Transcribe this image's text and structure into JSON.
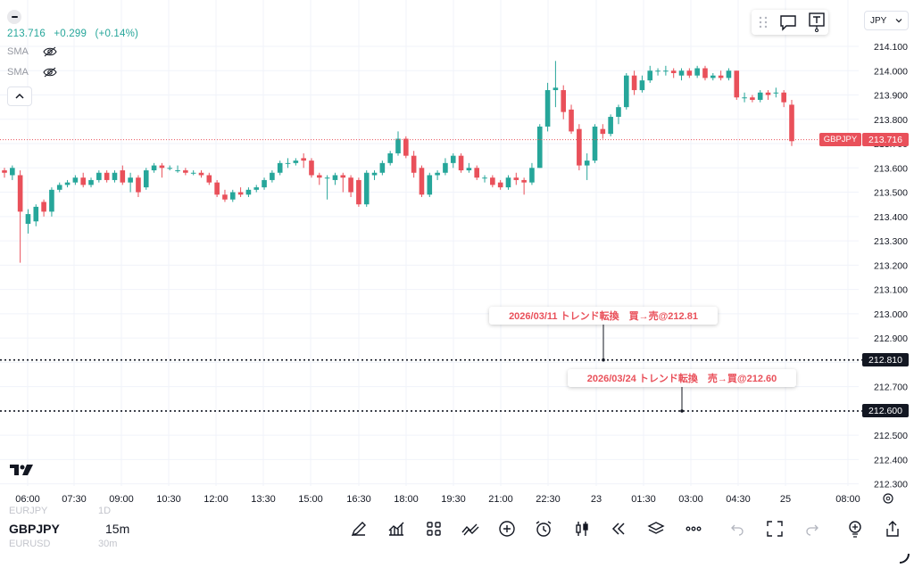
{
  "quote": {
    "price": "213.716",
    "change": "+0.299",
    "change_pct": "(+0.14%)"
  },
  "indicators": [
    {
      "label": "SMA",
      "icon": "eye-off-icon"
    },
    {
      "label": "SMA",
      "icon": "eye-off-icon"
    }
  ],
  "currency_select": {
    "value": "JPY"
  },
  "last_price": {
    "symbol": "GBPJPY",
    "value": "213.716"
  },
  "price_lines": [
    {
      "value": "212.810",
      "note": "2026/03/11 トレンド転換　買→売@212.81"
    },
    {
      "value": "212.600",
      "note": "2026/03/24 トレンド転換　売→買@212.60"
    }
  ],
  "chart_data": {
    "type": "candlestick",
    "symbol": "GBPJPY",
    "interval": "15m",
    "y_tick_labels": [
      "214.100",
      "214.000",
      "213.900",
      "213.800",
      "213.700",
      "213.600",
      "213.500",
      "213.400",
      "213.300",
      "213.200",
      "213.100",
      "213.000",
      "212.900",
      "212.800",
      "212.700",
      "212.600",
      "212.500",
      "212.400",
      "212.300"
    ],
    "x_tick_labels": [
      "06:00",
      "07:30",
      "09:00",
      "10:30",
      "12:00",
      "13:30",
      "15:00",
      "16:30",
      "18:00",
      "19:30",
      "21:00",
      "22:30",
      "23",
      "01:30",
      "03:00",
      "04:30",
      "25",
      "08:00"
    ],
    "ylim": [
      212.28,
      214.16
    ],
    "horizontal_lines": [
      213.716,
      212.81,
      212.6
    ],
    "candles": [
      {
        "o": 213.59,
        "h": 213.6,
        "l": 213.56,
        "c": 213.58
      },
      {
        "o": 213.57,
        "h": 213.61,
        "l": 213.55,
        "c": 213.6
      },
      {
        "o": 213.57,
        "h": 213.59,
        "l": 213.21,
        "c": 213.42
      },
      {
        "o": 213.37,
        "h": 213.43,
        "l": 213.33,
        "c": 213.41
      },
      {
        "o": 213.38,
        "h": 213.45,
        "l": 213.36,
        "c": 213.44
      },
      {
        "o": 213.46,
        "h": 213.47,
        "l": 213.4,
        "c": 213.42
      },
      {
        "o": 213.42,
        "h": 213.52,
        "l": 213.4,
        "c": 213.51
      },
      {
        "o": 213.51,
        "h": 213.54,
        "l": 213.5,
        "c": 213.53
      },
      {
        "o": 213.53,
        "h": 213.55,
        "l": 213.52,
        "c": 213.54
      },
      {
        "o": 213.54,
        "h": 213.57,
        "l": 213.53,
        "c": 213.56
      },
      {
        "o": 213.56,
        "h": 213.58,
        "l": 213.52,
        "c": 213.53
      },
      {
        "o": 213.53,
        "h": 213.56,
        "l": 213.52,
        "c": 213.55
      },
      {
        "o": 213.55,
        "h": 213.59,
        "l": 213.54,
        "c": 213.58
      },
      {
        "o": 213.58,
        "h": 213.59,
        "l": 213.54,
        "c": 213.55
      },
      {
        "o": 213.55,
        "h": 213.59,
        "l": 213.54,
        "c": 213.58
      },
      {
        "o": 213.59,
        "h": 213.61,
        "l": 213.53,
        "c": 213.54
      },
      {
        "o": 213.54,
        "h": 213.58,
        "l": 213.5,
        "c": 213.56
      },
      {
        "o": 213.56,
        "h": 213.57,
        "l": 213.48,
        "c": 213.5
      },
      {
        "o": 213.52,
        "h": 213.6,
        "l": 213.51,
        "c": 213.59
      },
      {
        "o": 213.59,
        "h": 213.62,
        "l": 213.58,
        "c": 213.61
      },
      {
        "o": 213.61,
        "h": 213.62,
        "l": 213.56,
        "c": 213.6
      },
      {
        "o": 213.6,
        "h": 213.61,
        "l": 213.59,
        "c": 213.6
      },
      {
        "o": 213.59,
        "h": 213.61,
        "l": 213.58,
        "c": 213.59
      },
      {
        "o": 213.59,
        "h": 213.6,
        "l": 213.57,
        "c": 213.58
      },
      {
        "o": 213.58,
        "h": 213.59,
        "l": 213.57,
        "c": 213.58
      },
      {
        "o": 213.58,
        "h": 213.59,
        "l": 213.56,
        "c": 213.57
      },
      {
        "o": 213.57,
        "h": 213.58,
        "l": 213.53,
        "c": 213.54
      },
      {
        "o": 213.54,
        "h": 213.55,
        "l": 213.48,
        "c": 213.49
      },
      {
        "o": 213.49,
        "h": 213.51,
        "l": 213.46,
        "c": 213.47
      },
      {
        "o": 213.47,
        "h": 213.51,
        "l": 213.46,
        "c": 213.5
      },
      {
        "o": 213.5,
        "h": 213.52,
        "l": 213.48,
        "c": 213.49
      },
      {
        "o": 213.49,
        "h": 213.52,
        "l": 213.48,
        "c": 213.51
      },
      {
        "o": 213.51,
        "h": 213.53,
        "l": 213.5,
        "c": 213.52
      },
      {
        "o": 213.52,
        "h": 213.56,
        "l": 213.51,
        "c": 213.55
      },
      {
        "o": 213.55,
        "h": 213.59,
        "l": 213.54,
        "c": 213.58
      },
      {
        "o": 213.58,
        "h": 213.63,
        "l": 213.57,
        "c": 213.62
      },
      {
        "o": 213.62,
        "h": 213.64,
        "l": 213.6,
        "c": 213.62
      },
      {
        "o": 213.62,
        "h": 213.64,
        "l": 213.61,
        "c": 213.63
      },
      {
        "o": 213.64,
        "h": 213.66,
        "l": 213.6,
        "c": 213.63
      },
      {
        "o": 213.63,
        "h": 213.64,
        "l": 213.56,
        "c": 213.57
      },
      {
        "o": 213.57,
        "h": 213.58,
        "l": 213.53,
        "c": 213.56
      },
      {
        "o": 213.56,
        "h": 213.57,
        "l": 213.47,
        "c": 213.56
      },
      {
        "o": 213.55,
        "h": 213.58,
        "l": 213.53,
        "c": 213.57
      },
      {
        "o": 213.57,
        "h": 213.58,
        "l": 213.5,
        "c": 213.56
      },
      {
        "o": 213.56,
        "h": 213.57,
        "l": 213.48,
        "c": 213.5
      },
      {
        "o": 213.55,
        "h": 213.56,
        "l": 213.44,
        "c": 213.45
      },
      {
        "o": 213.45,
        "h": 213.59,
        "l": 213.44,
        "c": 213.58
      },
      {
        "o": 213.57,
        "h": 213.59,
        "l": 213.55,
        "c": 213.58
      },
      {
        "o": 213.58,
        "h": 213.63,
        "l": 213.57,
        "c": 213.62
      },
      {
        "o": 213.62,
        "h": 213.67,
        "l": 213.61,
        "c": 213.66
      },
      {
        "o": 213.66,
        "h": 213.75,
        "l": 213.65,
        "c": 213.72
      },
      {
        "o": 213.72,
        "h": 213.73,
        "l": 213.64,
        "c": 213.65
      },
      {
        "o": 213.65,
        "h": 213.67,
        "l": 213.56,
        "c": 213.58
      },
      {
        "o": 213.6,
        "h": 213.61,
        "l": 213.48,
        "c": 213.49
      },
      {
        "o": 213.49,
        "h": 213.58,
        "l": 213.48,
        "c": 213.57
      },
      {
        "o": 213.57,
        "h": 213.59,
        "l": 213.55,
        "c": 213.58
      },
      {
        "o": 213.58,
        "h": 213.64,
        "l": 213.57,
        "c": 213.62
      },
      {
        "o": 213.62,
        "h": 213.66,
        "l": 213.6,
        "c": 213.65
      },
      {
        "o": 213.65,
        "h": 213.66,
        "l": 213.58,
        "c": 213.59
      },
      {
        "o": 213.59,
        "h": 213.62,
        "l": 213.58,
        "c": 213.6
      },
      {
        "o": 213.6,
        "h": 213.61,
        "l": 213.55,
        "c": 213.56
      },
      {
        "o": 213.56,
        "h": 213.57,
        "l": 213.54,
        "c": 213.56
      },
      {
        "o": 213.56,
        "h": 213.57,
        "l": 213.52,
        "c": 213.53
      },
      {
        "o": 213.54,
        "h": 213.55,
        "l": 213.51,
        "c": 213.52
      },
      {
        "o": 213.52,
        "h": 213.57,
        "l": 213.51,
        "c": 213.56
      },
      {
        "o": 213.56,
        "h": 213.58,
        "l": 213.53,
        "c": 213.55
      },
      {
        "o": 213.55,
        "h": 213.56,
        "l": 213.49,
        "c": 213.54
      },
      {
        "o": 213.54,
        "h": 213.62,
        "l": 213.53,
        "c": 213.6
      },
      {
        "o": 213.6,
        "h": 213.78,
        "l": 213.6,
        "c": 213.77
      },
      {
        "o": 213.77,
        "h": 213.95,
        "l": 213.75,
        "c": 213.92
      },
      {
        "o": 213.92,
        "h": 214.04,
        "l": 213.85,
        "c": 213.93
      },
      {
        "o": 213.92,
        "h": 213.94,
        "l": 213.8,
        "c": 213.83
      },
      {
        "o": 213.84,
        "h": 213.86,
        "l": 213.74,
        "c": 213.75
      },
      {
        "o": 213.76,
        "h": 213.78,
        "l": 213.59,
        "c": 213.61
      },
      {
        "o": 213.61,
        "h": 213.66,
        "l": 213.55,
        "c": 213.63
      },
      {
        "o": 213.63,
        "h": 213.78,
        "l": 213.62,
        "c": 213.77
      },
      {
        "o": 213.76,
        "h": 213.78,
        "l": 213.72,
        "c": 213.74
      },
      {
        "o": 213.74,
        "h": 213.82,
        "l": 213.73,
        "c": 213.81
      },
      {
        "o": 213.81,
        "h": 213.86,
        "l": 213.78,
        "c": 213.85
      },
      {
        "o": 213.85,
        "h": 213.99,
        "l": 213.84,
        "c": 213.98
      },
      {
        "o": 213.98,
        "h": 214.0,
        "l": 213.9,
        "c": 213.92
      },
      {
        "o": 213.92,
        "h": 213.98,
        "l": 213.91,
        "c": 213.96
      },
      {
        "o": 213.96,
        "h": 214.02,
        "l": 213.95,
        "c": 214.0
      },
      {
        "o": 214.0,
        "h": 214.01,
        "l": 213.98,
        "c": 214.0
      },
      {
        "o": 214.0,
        "h": 214.02,
        "l": 213.98,
        "c": 214.0
      },
      {
        "o": 214.0,
        "h": 214.01,
        "l": 213.97,
        "c": 213.99
      },
      {
        "o": 213.98,
        "h": 214.01,
        "l": 213.96,
        "c": 214.0
      },
      {
        "o": 214.0,
        "h": 214.01,
        "l": 213.97,
        "c": 213.98
      },
      {
        "o": 213.98,
        "h": 214.02,
        "l": 213.97,
        "c": 214.01
      },
      {
        "o": 214.01,
        "h": 214.02,
        "l": 213.96,
        "c": 213.97
      },
      {
        "o": 213.97,
        "h": 213.99,
        "l": 213.96,
        "c": 213.98
      },
      {
        "o": 213.98,
        "h": 214.0,
        "l": 213.96,
        "c": 213.97
      },
      {
        "o": 213.97,
        "h": 214.01,
        "l": 213.96,
        "c": 214.0
      },
      {
        "o": 214.0,
        "h": 214.0,
        "l": 213.88,
        "c": 213.89
      },
      {
        "o": 213.89,
        "h": 213.91,
        "l": 213.87,
        "c": 213.89
      },
      {
        "o": 213.89,
        "h": 213.9,
        "l": 213.87,
        "c": 213.88
      },
      {
        "o": 213.88,
        "h": 213.92,
        "l": 213.87,
        "c": 213.91
      },
      {
        "o": 213.91,
        "h": 213.92,
        "l": 213.88,
        "c": 213.9
      },
      {
        "o": 213.91,
        "h": 213.93,
        "l": 213.89,
        "c": 213.91
      },
      {
        "o": 213.91,
        "h": 213.92,
        "l": 213.85,
        "c": 213.87
      },
      {
        "o": 213.86,
        "h": 213.88,
        "l": 213.69,
        "c": 213.71
      }
    ]
  },
  "bottom": {
    "symbols_above": [
      {
        "symbol": "EURJPY",
        "interval": "1D"
      }
    ],
    "current": {
      "symbol": "GBPJPY",
      "interval": "15m"
    },
    "symbols_below": [
      {
        "symbol": "EURUSD",
        "interval": "30m"
      }
    ],
    "toolbar": [
      "pen-icon",
      "indicators-icon",
      "templates-icon",
      "compare-icon",
      "plus-circle-icon",
      "alarm-icon",
      "candles-icon",
      "replay-icon",
      "layers-icon",
      "more-icon",
      "undo-icon",
      "fullscreen-icon",
      "redo-icon",
      "bulb-icon",
      "share-icon"
    ]
  },
  "colors": {
    "up": "#26a69a",
    "down": "#e9505a",
    "grid": "#f0f3fa",
    "text": "#131722"
  }
}
